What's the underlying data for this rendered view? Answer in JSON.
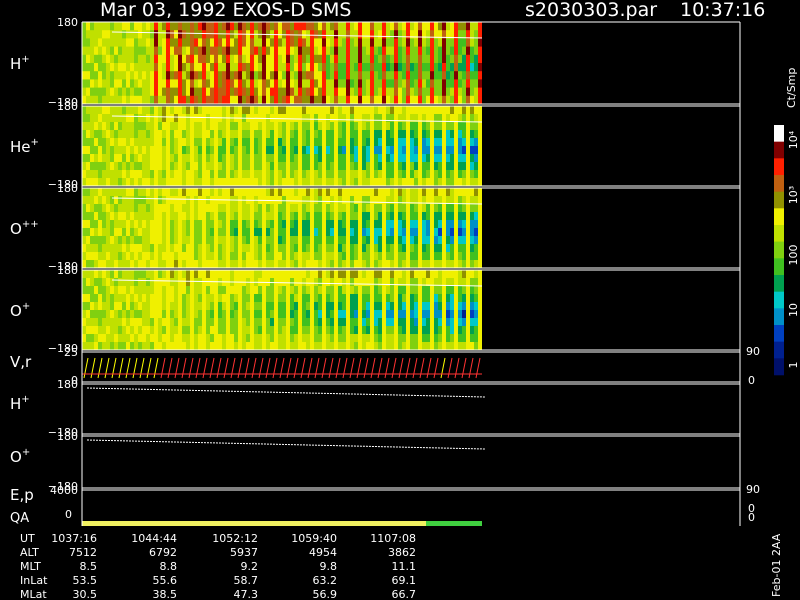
{
  "header": {
    "title": "Mar 03, 1992   EXOS-D SMS",
    "file": "s2030303.par",
    "time": "10:37:16"
  },
  "panels": [
    {
      "label": "H",
      "sup": "+",
      "top": "180",
      "bottom": "−180"
    },
    {
      "label": "He",
      "sup": "+",
      "top": "180",
      "bottom": "−180"
    },
    {
      "label": "O",
      "sup": "++",
      "top": "180",
      "bottom": "−180"
    },
    {
      "label": "O",
      "sup": "+",
      "top": "180",
      "bottom": "−180"
    },
    {
      "label": "V,r",
      "sup": "",
      "top": "25",
      "bottom": "0",
      "right_top": "90",
      "right_bottom": "0"
    },
    {
      "label": "H",
      "sup": "+",
      "top": "180",
      "bottom": "−180"
    },
    {
      "label": "O",
      "sup": "+",
      "top": "180",
      "bottom": "−180"
    },
    {
      "label": "E,p",
      "sup": "",
      "top": "4000",
      "bottom": "",
      "right_top": "90",
      "right_bottom": "0"
    }
  ],
  "qa": {
    "label": "QA",
    "tick": "0",
    "right_tick": "0"
  },
  "colorbar": {
    "unit": "Ct/Smp",
    "labels": [
      "10⁴",
      "10³",
      "100",
      "10",
      "1"
    ]
  },
  "table": {
    "rows": [
      [
        "UT",
        "1037:16",
        "1044:44",
        "1052:12",
        "1059:40",
        "1107:08"
      ],
      [
        "ALT",
        "7512",
        "6792",
        "5937",
        "4954",
        "3862"
      ],
      [
        "MLT",
        "8.5",
        "8.8",
        "9.2",
        "9.8",
        "11.1"
      ],
      [
        "InLat",
        "53.5",
        "55.6",
        "58.7",
        "63.2",
        "69.1"
      ],
      [
        "MLat",
        "30.5",
        "38.5",
        "47.3",
        "56.9",
        "66.7"
      ]
    ]
  },
  "footer": "Feb-01 2AA"
}
